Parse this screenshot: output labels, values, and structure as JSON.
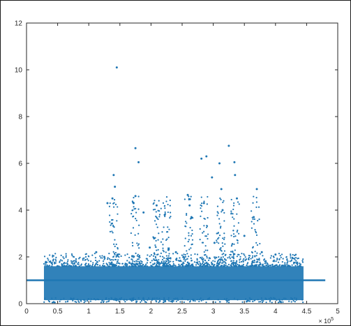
{
  "chart_data": {
    "type": "scatter",
    "title": "",
    "xlabel": "",
    "ylabel": "",
    "xlim": [
      0,
      500000
    ],
    "ylim": [
      0,
      12
    ],
    "x_ticks": [
      0,
      50000,
      100000,
      150000,
      200000,
      250000,
      300000,
      350000,
      400000,
      450000,
      500000
    ],
    "x_tick_labels": [
      "0",
      "0.5",
      "1",
      "1.5",
      "2",
      "2.5",
      "3",
      "3.5",
      "4",
      "4.5",
      "5"
    ],
    "x_exponent_label": "× 10^5",
    "y_ticks": [
      0,
      2,
      4,
      6,
      8,
      10,
      12
    ],
    "y_tick_labels": [
      "0",
      "2",
      "4",
      "6",
      "8",
      "10",
      "12"
    ],
    "grid": false,
    "legend": "none",
    "marker_color": "#1f77b4",
    "reference_line": {
      "y": 1,
      "x_range": [
        0,
        480000
      ]
    },
    "dense_band": {
      "x_range": [
        28000,
        445000
      ],
      "y_range": [
        0.15,
        1.6
      ]
    },
    "outliers": [
      {
        "x": 145000,
        "y": 10.1
      },
      {
        "x": 175000,
        "y": 6.65
      },
      {
        "x": 180000,
        "y": 6.05
      },
      {
        "x": 140000,
        "y": 5.5
      },
      {
        "x": 142000,
        "y": 5.0
      },
      {
        "x": 138000,
        "y": 4.5
      },
      {
        "x": 175000,
        "y": 4.6
      },
      {
        "x": 172000,
        "y": 4.3
      },
      {
        "x": 130000,
        "y": 4.3
      },
      {
        "x": 188000,
        "y": 3.9
      },
      {
        "x": 209000,
        "y": 4.2
      },
      {
        "x": 222000,
        "y": 3.8
      },
      {
        "x": 259000,
        "y": 4.65
      },
      {
        "x": 262000,
        "y": 4.2
      },
      {
        "x": 265000,
        "y": 3.7
      },
      {
        "x": 281000,
        "y": 6.2
      },
      {
        "x": 289000,
        "y": 6.3
      },
      {
        "x": 285000,
        "y": 4.3
      },
      {
        "x": 298000,
        "y": 5.4
      },
      {
        "x": 310000,
        "y": 6.0
      },
      {
        "x": 313000,
        "y": 4.9
      },
      {
        "x": 315000,
        "y": 4.0
      },
      {
        "x": 325000,
        "y": 6.75
      },
      {
        "x": 334000,
        "y": 6.05
      },
      {
        "x": 335000,
        "y": 5.5
      },
      {
        "x": 338000,
        "y": 4.5
      },
      {
        "x": 370000,
        "y": 4.9
      },
      {
        "x": 365000,
        "y": 3.7
      },
      {
        "x": 112000,
        "y": 2.2
      },
      {
        "x": 125000,
        "y": 2.0
      },
      {
        "x": 198000,
        "y": 2.4
      },
      {
        "x": 205000,
        "y": 2.8
      },
      {
        "x": 228000,
        "y": 2.3
      },
      {
        "x": 240000,
        "y": 2.2
      },
      {
        "x": 302000,
        "y": 2.6
      },
      {
        "x": 350000,
        "y": 2.9
      },
      {
        "x": 378000,
        "y": 2.2
      },
      {
        "x": 400000,
        "y": 2.1
      }
    ]
  }
}
